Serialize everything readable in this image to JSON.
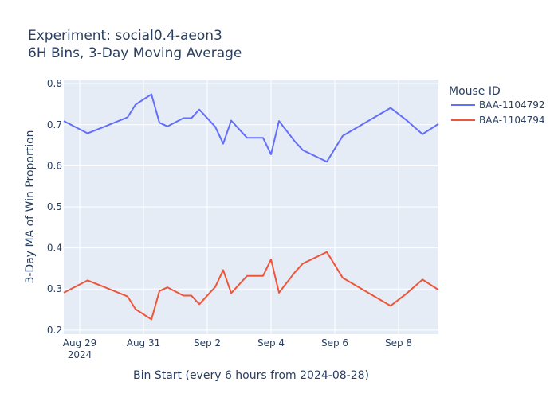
{
  "chart_data": {
    "type": "line",
    "title": "Experiment: social0.4-aeon3",
    "subtitle": "6H Bins, 3-Day Moving Average",
    "xlabel": "Bin Start (every 6 hours from 2024-08-28)",
    "ylabel": "3-Day MA of Win Proportion",
    "xlim": [
      0.0,
      11.75
    ],
    "ylim": [
      0.19,
      0.81
    ],
    "x_ticks": [
      {
        "label": "Aug 29",
        "sublabel": "2024",
        "value": 0.5
      },
      {
        "label": "Aug 31",
        "sublabel": "",
        "value": 2.5
      },
      {
        "label": "Sep 2",
        "sublabel": "",
        "value": 4.5
      },
      {
        "label": "Sep 4",
        "sublabel": "",
        "value": 6.5
      },
      {
        "label": "Sep 6",
        "sublabel": "",
        "value": 8.5
      },
      {
        "label": "Sep 8",
        "sublabel": "",
        "value": 10.5
      }
    ],
    "y_ticks": [
      {
        "label": "0.2",
        "value": 0.2
      },
      {
        "label": "0.3",
        "value": 0.3
      },
      {
        "label": "0.4",
        "value": 0.4
      },
      {
        "label": "0.5",
        "value": 0.5
      },
      {
        "label": "0.6",
        "value": 0.6
      },
      {
        "label": "0.7",
        "value": 0.7
      },
      {
        "label": "0.8",
        "value": 0.8
      }
    ],
    "legend_title": "Mouse ID",
    "legend_position": "right",
    "series": [
      {
        "name": "BAA-1104792",
        "color": "#636efa",
        "x": [
          0.0,
          0.75,
          2.0,
          2.25,
          2.75,
          3.0,
          3.25,
          3.75,
          4.0,
          4.25,
          4.75,
          5.0,
          5.25,
          5.75,
          6.25,
          6.5,
          6.75,
          7.25,
          7.5,
          8.25,
          8.75,
          10.25,
          10.75,
          11.25,
          11.75
        ],
        "y": [
          0.709,
          0.679,
          0.718,
          0.749,
          0.774,
          0.705,
          0.696,
          0.716,
          0.716,
          0.737,
          0.695,
          0.654,
          0.71,
          0.668,
          0.668,
          0.628,
          0.709,
          0.659,
          0.638,
          0.61,
          0.673,
          0.741,
          0.711,
          0.677,
          0.702
        ]
      },
      {
        "name": "BAA-1104794",
        "color": "#ef553b",
        "x": [
          0.0,
          0.75,
          2.0,
          2.25,
          2.75,
          3.0,
          3.25,
          3.75,
          4.0,
          4.25,
          4.75,
          5.0,
          5.25,
          5.75,
          6.25,
          6.5,
          6.75,
          7.25,
          7.5,
          8.25,
          8.75,
          10.25,
          10.75,
          11.25,
          11.75
        ],
        "y": [
          0.291,
          0.321,
          0.282,
          0.251,
          0.226,
          0.295,
          0.304,
          0.284,
          0.284,
          0.263,
          0.305,
          0.346,
          0.29,
          0.332,
          0.332,
          0.372,
          0.291,
          0.341,
          0.362,
          0.39,
          0.327,
          0.259,
          0.289,
          0.323,
          0.298
        ]
      }
    ]
  }
}
